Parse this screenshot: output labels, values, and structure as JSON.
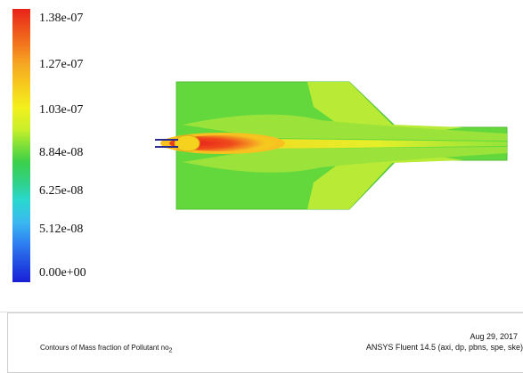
{
  "colorbar": {
    "labels": [
      "1.38e-07",
      "1.27e-07",
      "1.03e-07",
      "8.84e-08",
      "6.25e-08",
      "5.12e-08",
      "0.00e+00"
    ]
  },
  "footer": {
    "caption_main": "Contours of Mass fraction of Pollutant no",
    "caption_sub": "2",
    "date": "Aug 29, 2017",
    "software": "ANSYS Fluent 14.5 (axi, dp, pbns, spe, ske)"
  },
  "colors": {
    "max": "#e8231a",
    "high": "#f5a623",
    "mid": "#f3f01c",
    "domain_fill": "#63d83d",
    "low": "#2ad8d0",
    "min": "#1a1fd6",
    "inlet": "#2c2c8f"
  }
}
